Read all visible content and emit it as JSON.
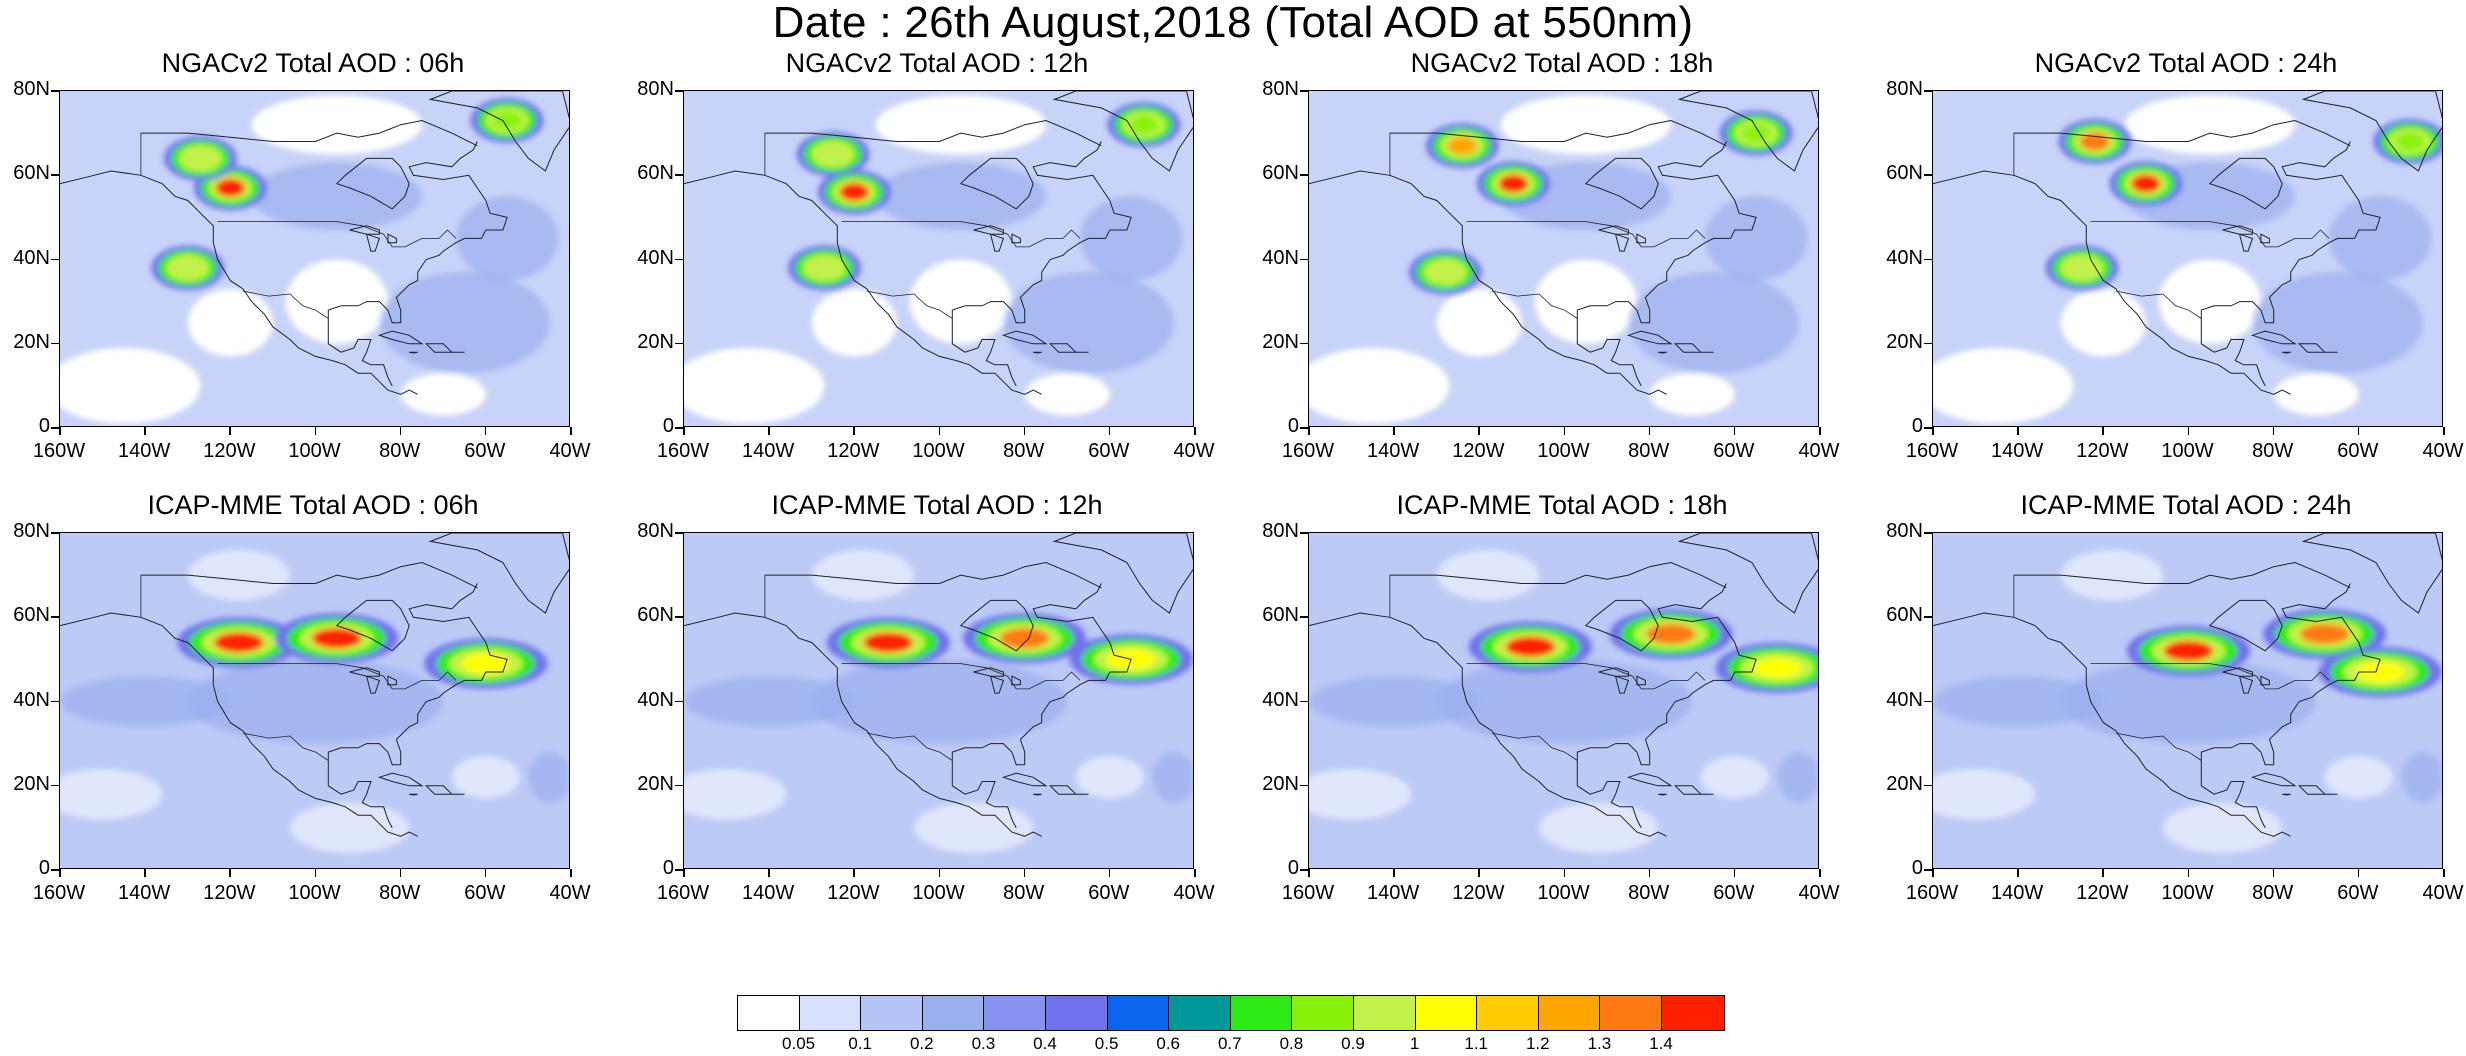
{
  "title": "Date : 26th August,2018 (Total AOD at 550nm)",
  "y_axis_labels": [
    "80N",
    "60N",
    "40N",
    "20N",
    "0"
  ],
  "x_axis_labels": [
    "160W",
    "140W",
    "120W",
    "100W",
    "80W",
    "60W",
    "40W"
  ],
  "map_extent": {
    "lon": [
      -160,
      -40
    ],
    "lat": [
      0,
      80
    ]
  },
  "panels": [
    {
      "title": "NGACv2 Total AOD : 06h",
      "model": "NGACv2",
      "hour": 6
    },
    {
      "title": "NGACv2 Total AOD : 12h",
      "model": "NGACv2",
      "hour": 12
    },
    {
      "title": "NGACv2 Total AOD : 18h",
      "model": "NGACv2",
      "hour": 18
    },
    {
      "title": "NGACv2 Total AOD : 24h",
      "model": "NGACv2",
      "hour": 24
    },
    {
      "title": "ICAP-MME Total AOD : 06h",
      "model": "ICAP-MME",
      "hour": 6
    },
    {
      "title": "ICAP-MME Total AOD : 12h",
      "model": "ICAP-MME",
      "hour": 12
    },
    {
      "title": "ICAP-MME Total AOD : 18h",
      "model": "ICAP-MME",
      "hour": 18
    },
    {
      "title": "ICAP-MME Total AOD : 24h",
      "model": "ICAP-MME",
      "hour": 24
    }
  ],
  "colorbar": {
    "colors": [
      "#ffffff",
      "#d7e1fb",
      "#b5c4f7",
      "#9aafee",
      "#8592ef",
      "#6f72ec",
      "#0a64ee",
      "#009898",
      "#2cea16",
      "#8af20a",
      "#c2f24a",
      "#ffff00",
      "#ffcc00",
      "#ffa500",
      "#ff7a14",
      "#ff2000"
    ],
    "labels": [
      "0.05",
      "0.1",
      "0.2",
      "0.3",
      "0.4",
      "0.5",
      "0.6",
      "0.7",
      "0.8",
      "0.9",
      "1",
      "1.1",
      "1.2",
      "1.3",
      "1.4"
    ]
  },
  "smoke_plumes": {
    "ngac": [
      [
        {
          "lon": -120,
          "lat": 57,
          "aod": 1.4
        },
        {
          "lon": -130,
          "lat": 38,
          "aod": 0.9
        },
        {
          "lon": -127,
          "lat": 64,
          "aod": 0.9
        },
        {
          "lon": -55,
          "lat": 73,
          "aod": 0.8
        }
      ],
      [
        {
          "lon": -120,
          "lat": 56,
          "aod": 1.4
        },
        {
          "lon": -127,
          "lat": 38,
          "aod": 0.9
        },
        {
          "lon": -125,
          "lat": 65,
          "aod": 0.9
        },
        {
          "lon": -52,
          "lat": 72,
          "aod": 0.8
        }
      ],
      [
        {
          "lon": -112,
          "lat": 58,
          "aod": 1.4
        },
        {
          "lon": -128,
          "lat": 37,
          "aod": 0.9
        },
        {
          "lon": -124,
          "lat": 67,
          "aod": 1.2
        },
        {
          "lon": -55,
          "lat": 70,
          "aod": 0.8
        }
      ],
      [
        {
          "lon": -110,
          "lat": 58,
          "aod": 1.4
        },
        {
          "lon": -125,
          "lat": 38,
          "aod": 0.9
        },
        {
          "lon": -122,
          "lat": 68,
          "aod": 1.3
        },
        {
          "lon": -48,
          "lat": 68,
          "aod": 0.8
        }
      ]
    ],
    "icap": [
      [
        {
          "lon": -118,
          "lat": 54,
          "aod": 1.4
        },
        {
          "lon": -95,
          "lat": 55,
          "aod": 1.4
        },
        {
          "lon": -60,
          "lat": 49,
          "aod": 1.0
        }
      ],
      [
        {
          "lon": -112,
          "lat": 54,
          "aod": 1.4
        },
        {
          "lon": -80,
          "lat": 55,
          "aod": 1.3
        },
        {
          "lon": -55,
          "lat": 50,
          "aod": 1.0
        }
      ],
      [
        {
          "lon": -108,
          "lat": 53,
          "aod": 1.4
        },
        {
          "lon": -75,
          "lat": 56,
          "aod": 1.3
        },
        {
          "lon": -50,
          "lat": 48,
          "aod": 1.0
        }
      ],
      [
        {
          "lon": -100,
          "lat": 52,
          "aod": 1.4
        },
        {
          "lon": -68,
          "lat": 56,
          "aod": 1.3
        },
        {
          "lon": -55,
          "lat": 47,
          "aod": 1.0
        }
      ]
    ]
  }
}
